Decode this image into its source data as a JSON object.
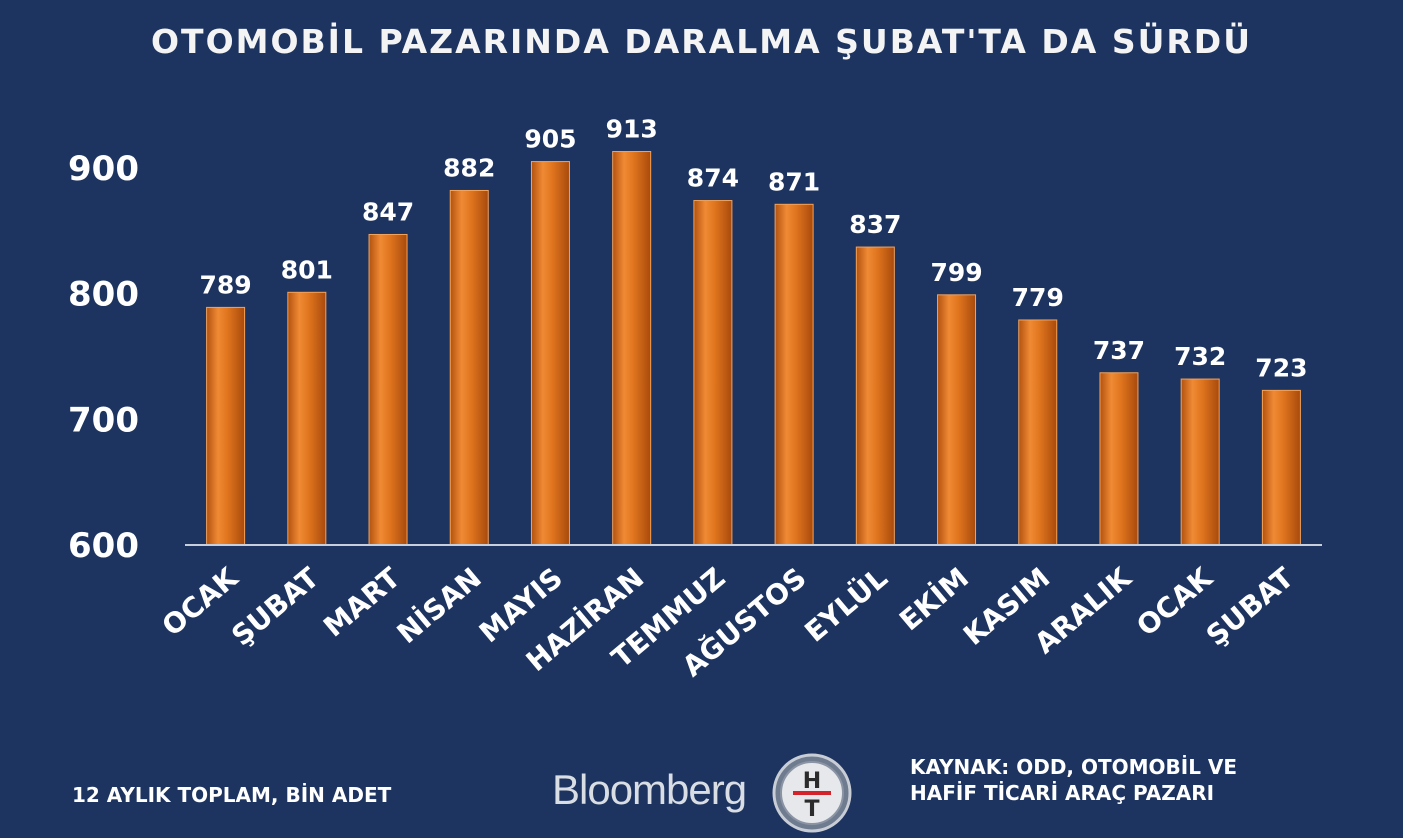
{
  "title": "OTOMOBİL PAZARINDA DARALMA ŞUBAT'TA DA SÜRDÜ",
  "unit_note": "12 AYLIK TOPLAM, BİN ADET",
  "brand": "Bloomberg",
  "emblem_letters": [
    "H",
    "T"
  ],
  "source_lines": [
    "KAYNAK: ODD, OTOMOBİL VE",
    "HAFİF TİCARİ ARAÇ PAZARI"
  ],
  "colors": {
    "background": "#1e3460",
    "bar": "#e0751e",
    "bar_dark": "#a84a0c",
    "axis": "#c8cfdc"
  },
  "chart_data": {
    "type": "bar",
    "title": "OTOMOBİL PAZARINDA DARALMA ŞUBAT'TA DA SÜRDÜ",
    "categories": [
      "OCAK",
      "ŞUBAT",
      "MART",
      "NİSAN",
      "MAYIS",
      "HAZİRAN",
      "TEMMUZ",
      "AĞUSTOS",
      "EYLÜL",
      "EKİM",
      "KASIM",
      "ARALIK",
      "OCAK",
      "ŞUBAT"
    ],
    "values": [
      789,
      801,
      847,
      882,
      905,
      913,
      874,
      871,
      837,
      799,
      779,
      737,
      732,
      723
    ],
    "data_labels": [
      "789",
      "801",
      "847",
      "882",
      "905",
      "913",
      "874",
      "871",
      "837",
      "799",
      "779",
      "737",
      "732",
      "723"
    ],
    "ylim": [
      600,
      950
    ],
    "yticks": [
      600,
      700,
      800,
      900
    ],
    "ytick_labels": [
      "600",
      "700",
      "800",
      "900"
    ],
    "grid": false,
    "legend": "none"
  }
}
